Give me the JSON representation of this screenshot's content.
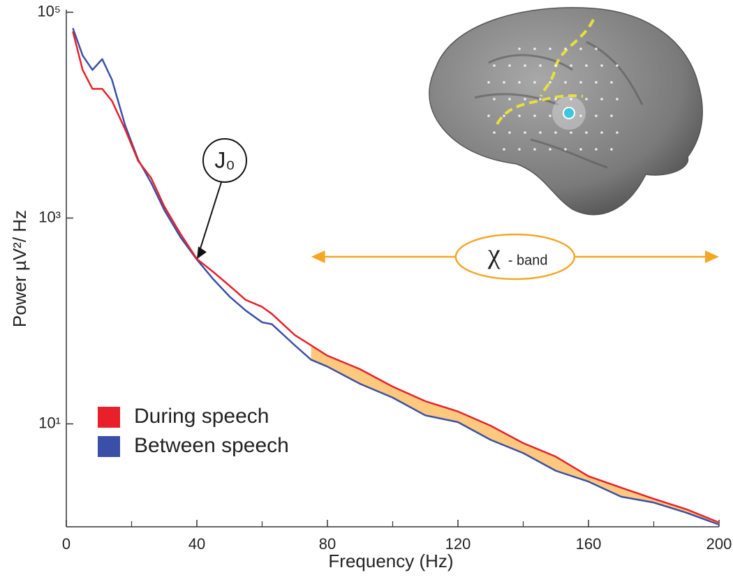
{
  "chart_data": {
    "type": "line",
    "x_label": "Frequency (Hz)",
    "y_label": "Power µV²/ Hz",
    "log_y": true,
    "xlim": [
      0,
      200
    ],
    "ylim": [
      1,
      100000
    ],
    "xticks": [
      0,
      40,
      80,
      120,
      160,
      200
    ],
    "xminor_ticks": [
      20,
      60,
      100,
      140,
      180
    ],
    "yticks": [
      {
        "value": 10,
        "label": "10¹"
      },
      {
        "value": 1000,
        "label": "10³"
      },
      {
        "value": 100000,
        "label": "10⁵"
      }
    ],
    "x": [
      2,
      5,
      8,
      11,
      14,
      18,
      22,
      26,
      30,
      35,
      40,
      45,
      50,
      55,
      60,
      63,
      70,
      75,
      80,
      90,
      100,
      110,
      120,
      130,
      140,
      150,
      160,
      170,
      180,
      190,
      200
    ],
    "series": [
      {
        "name": "During speech",
        "color": "#e8202a",
        "values": [
          65000,
          27500,
          18000,
          18000,
          13700,
          7300,
          3600,
          2450,
          1300,
          700,
          400,
          300,
          220,
          160,
          137,
          117,
          73,
          58,
          46,
          34,
          23,
          16.6,
          13.2,
          9.6,
          6.5,
          4.8,
          3.1,
          2.4,
          1.87,
          1.48,
          1.1
        ]
      },
      {
        "name": "Between speech",
        "color": "#3a4fa8",
        "values": [
          70000,
          38000,
          27500,
          35000,
          22000,
          8000,
          3700,
          2200,
          1200,
          650,
          395,
          255,
          173,
          126,
          97,
          93,
          58,
          42,
          36,
          24.5,
          18,
          12.1,
          10.4,
          7,
          5.2,
          3.5,
          2.75,
          1.96,
          1.72,
          1.37,
          1.05
        ]
      }
    ],
    "band": {
      "symbol": "χ",
      "label": "- band",
      "xlim": [
        75,
        200
      ],
      "color": "#f5a623",
      "fill": "#fdc97e"
    },
    "callout": {
      "label": "J₀",
      "x": 40
    }
  }
}
